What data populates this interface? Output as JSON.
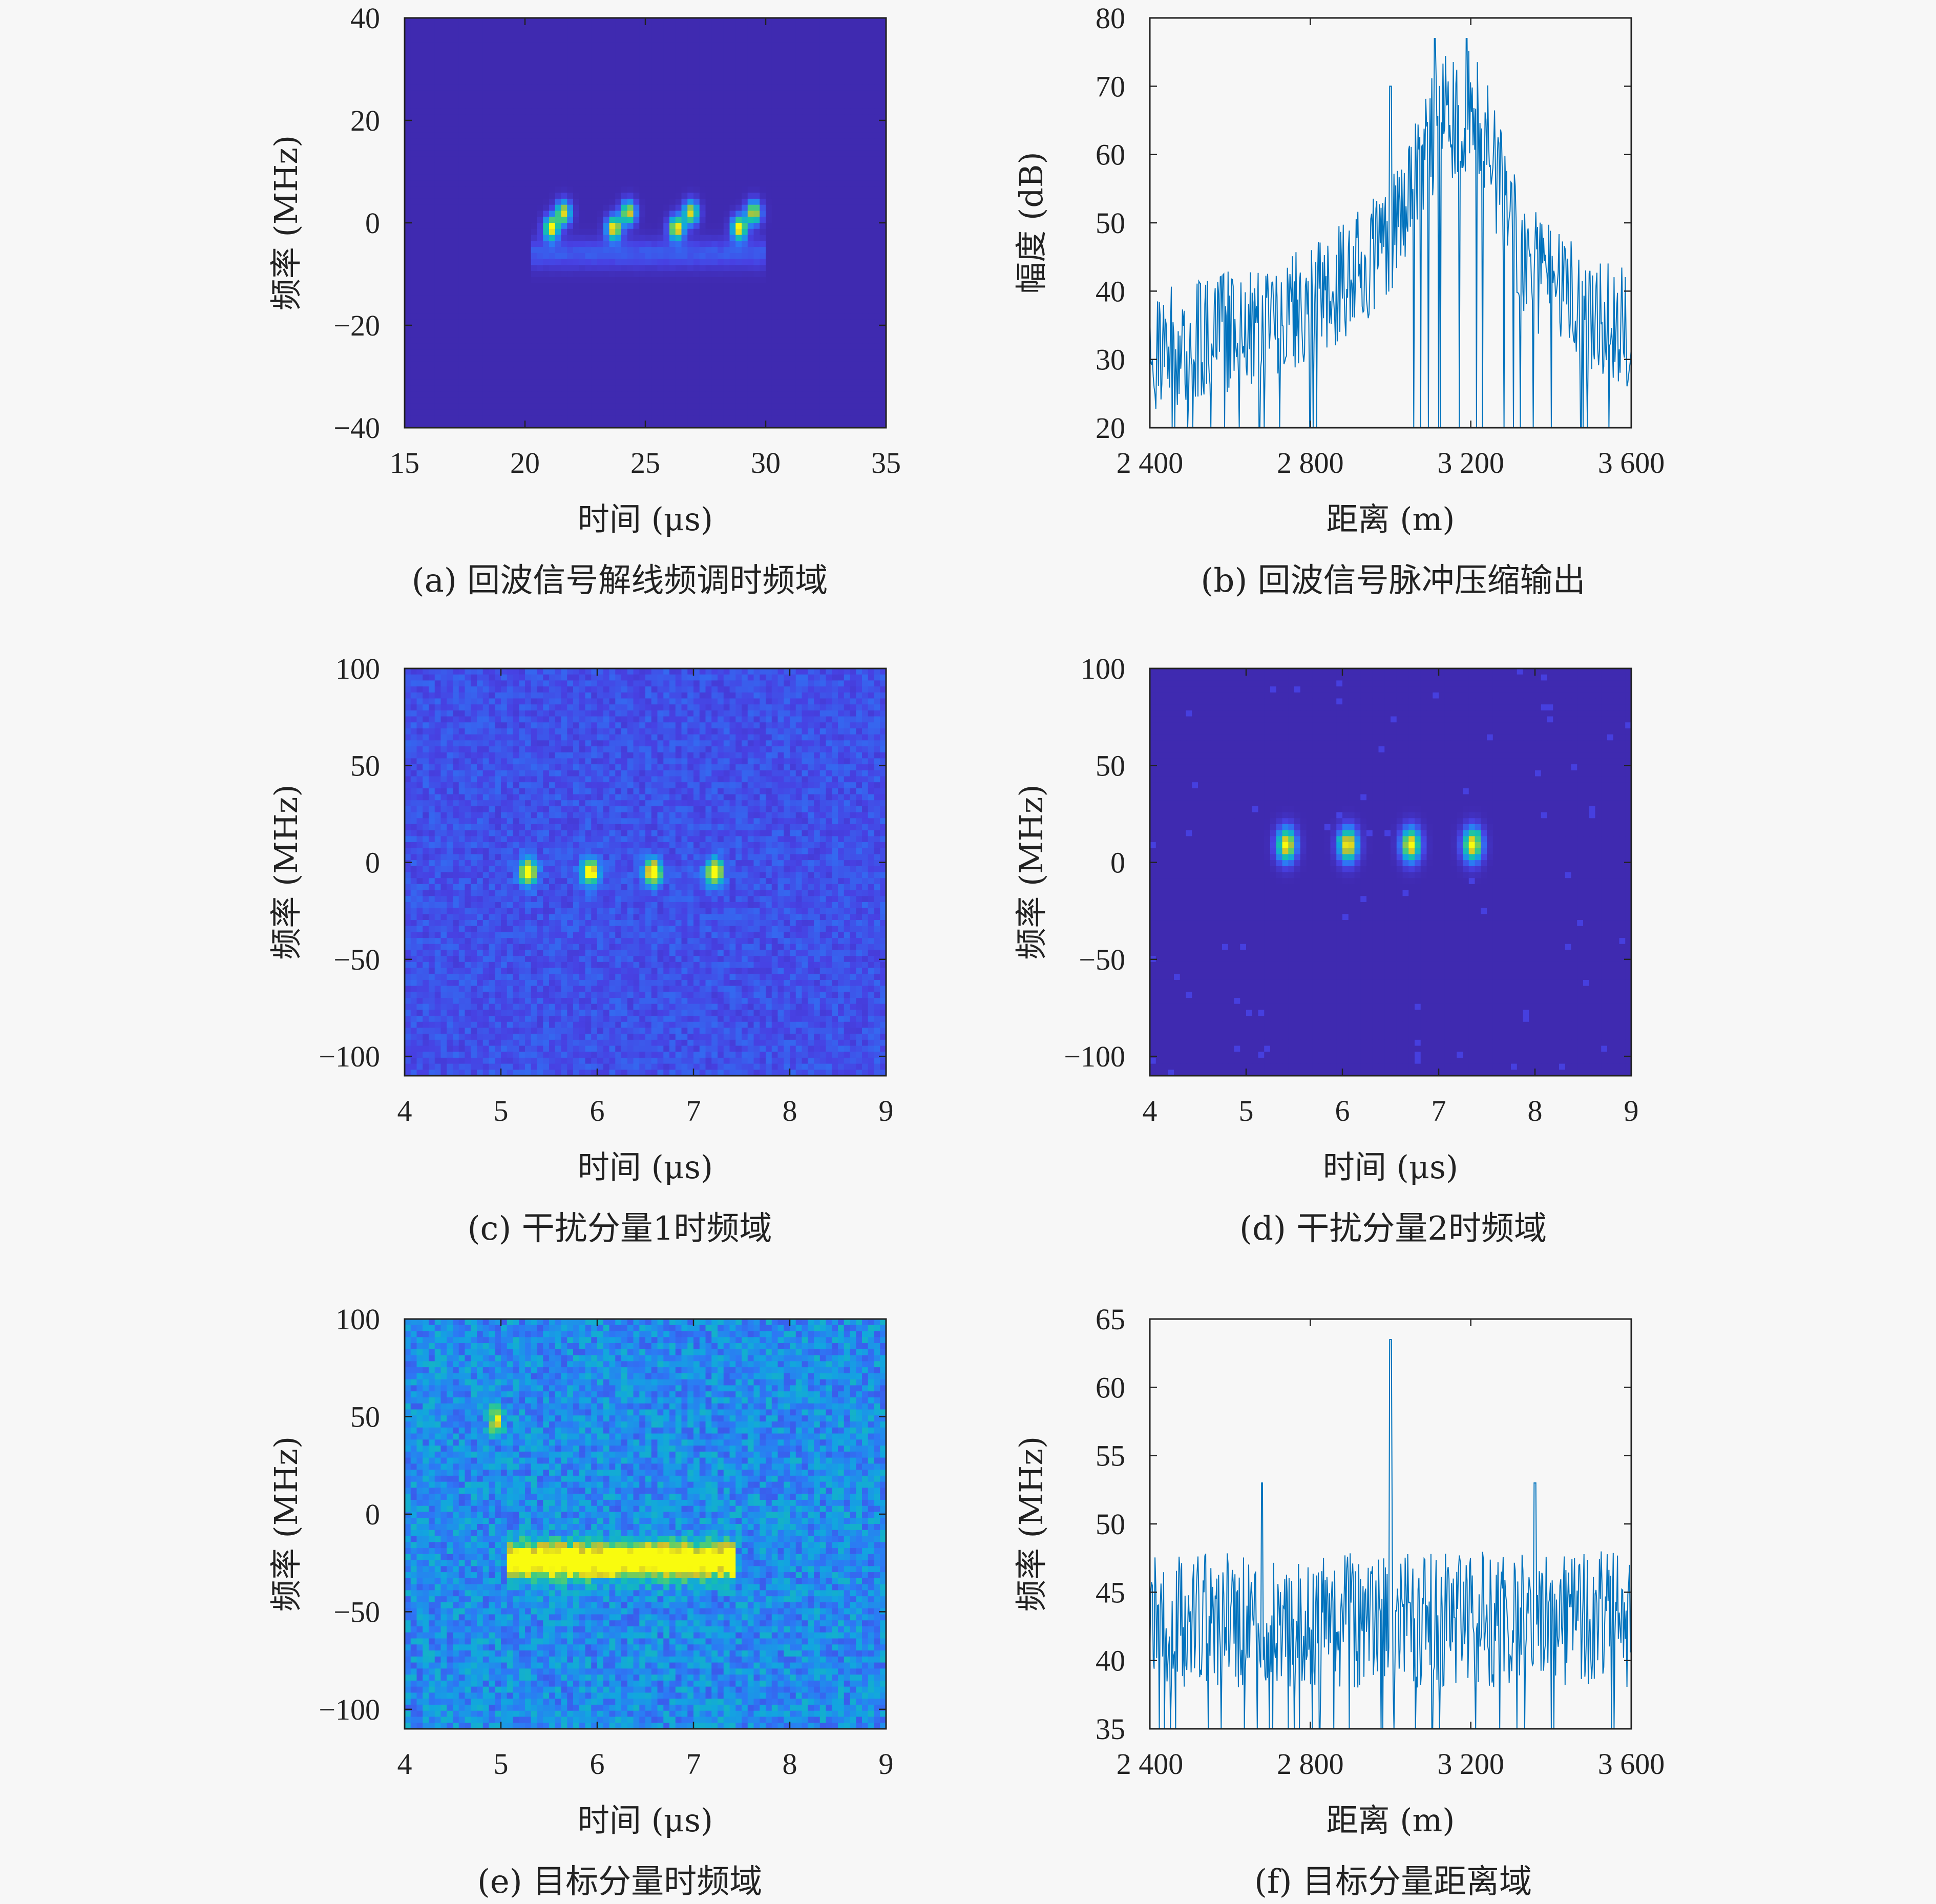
{
  "colors": {
    "background": "#f7f7f7",
    "axis": "#222222",
    "line": "#0072bd",
    "heatmap_low": "#3e26a8",
    "heatmap_mid": "#12bee6",
    "heatmap_high": "#f9fb0e"
  },
  "chart_data": [
    {
      "id": "a",
      "type": "heatmap",
      "caption": "(a) 回波信号解线频调时频域",
      "xlabel": "时间 (μs)",
      "ylabel": "频率 (MHz)",
      "xlim": [
        15,
        35
      ],
      "ylim": [
        -40,
        40
      ],
      "xticks": [
        15,
        20,
        25,
        30,
        35
      ],
      "yticks": [
        -40,
        -20,
        0,
        20,
        40
      ],
      "xtick_labels": [
        "15",
        "20",
        "25",
        "30",
        "35"
      ],
      "ytick_labels": [
        "−40",
        "−20",
        "0",
        "20",
        "40"
      ],
      "background_level": 0.02,
      "hotspots": [
        {
          "x": 21.1,
          "y": -1,
          "sx": 0.22,
          "sy": 1.6,
          "a": 1.0
        },
        {
          "x": 21.6,
          "y": 2,
          "sx": 0.22,
          "sy": 1.6,
          "a": 0.9
        },
        {
          "x": 23.7,
          "y": -1,
          "sx": 0.22,
          "sy": 1.6,
          "a": 1.0
        },
        {
          "x": 24.3,
          "y": 2,
          "sx": 0.22,
          "sy": 1.6,
          "a": 0.9
        },
        {
          "x": 26.3,
          "y": -1,
          "sx": 0.22,
          "sy": 1.6,
          "a": 1.0
        },
        {
          "x": 26.9,
          "y": 2,
          "sx": 0.22,
          "sy": 1.6,
          "a": 0.9
        },
        {
          "x": 28.9,
          "y": -1,
          "sx": 0.22,
          "sy": 1.6,
          "a": 1.0
        },
        {
          "x": 29.5,
          "y": 2,
          "sx": 0.22,
          "sy": 1.6,
          "a": 0.9
        }
      ],
      "bands": [
        {
          "x0": 20.3,
          "x1": 30.0,
          "y": -6,
          "h": 2,
          "a": 0.22
        }
      ]
    },
    {
      "id": "b",
      "type": "line",
      "caption": "(b) 回波信号脉冲压缩输出",
      "xlabel": "距离 (m)",
      "ylabel": "幅度 (dB)",
      "xlim": [
        2400,
        3600
      ],
      "ylim": [
        20,
        80
      ],
      "xticks": [
        2400,
        2800,
        3200,
        3600
      ],
      "yticks": [
        20,
        30,
        40,
        50,
        60,
        70,
        80
      ],
      "xtick_labels": [
        "2 400",
        "2 800",
        "3 200",
        "3 600"
      ],
      "ytick_labels": [
        "20",
        "30",
        "40",
        "50",
        "60",
        "70",
        "80"
      ],
      "envelope": [
        [
          2400,
          31
        ],
        [
          2600,
          34
        ],
        [
          2800,
          38
        ],
        [
          2980,
          46
        ],
        [
          3080,
          58
        ],
        [
          3130,
          68
        ],
        [
          3170,
          64
        ],
        [
          3210,
          68
        ],
        [
          3260,
          58
        ],
        [
          3340,
          44
        ],
        [
          3460,
          38
        ],
        [
          3600,
          34
        ]
      ],
      "spikes": [
        [
          3000,
          70
        ],
        [
          3110,
          77
        ],
        [
          3190,
          77
        ]
      ],
      "noise_amp": 9,
      "num_points": 560
    },
    {
      "id": "c",
      "type": "heatmap",
      "caption": "(c) 干扰分量1时频域",
      "xlabel": "时间 (μs)",
      "ylabel": "频率 (MHz)",
      "xlim": [
        4,
        9
      ],
      "ylim": [
        -110,
        100
      ],
      "xticks": [
        4,
        5,
        6,
        7,
        8,
        9
      ],
      "yticks": [
        -100,
        -50,
        0,
        50,
        100
      ],
      "xtick_labels": [
        "4",
        "5",
        "6",
        "7",
        "8",
        "9"
      ],
      "ytick_labels": [
        "−100",
        "−50",
        "0",
        "50",
        "100"
      ],
      "background_level": 0.12,
      "noise_level": 0.14,
      "hotspots": [
        {
          "x": 5.28,
          "y": -5,
          "sx": 0.06,
          "sy": 4.5,
          "a": 1.0
        },
        {
          "x": 5.93,
          "y": -5,
          "sx": 0.06,
          "sy": 4.5,
          "a": 1.0
        },
        {
          "x": 6.58,
          "y": -5,
          "sx": 0.06,
          "sy": 4.5,
          "a": 1.0
        },
        {
          "x": 7.22,
          "y": -5,
          "sx": 0.06,
          "sy": 4.5,
          "a": 1.0
        }
      ],
      "bands": []
    },
    {
      "id": "d",
      "type": "heatmap",
      "caption": "(d) 干扰分量2时频域",
      "xlabel": "时间 (μs)",
      "ylabel": "频率 (MHz)",
      "xlim": [
        4,
        9
      ],
      "ylim": [
        -110,
        100
      ],
      "xticks": [
        4,
        5,
        6,
        7,
        8,
        9
      ],
      "yticks": [
        -100,
        -50,
        0,
        50,
        100
      ],
      "xtick_labels": [
        "4",
        "5",
        "6",
        "7",
        "8",
        "9"
      ],
      "ytick_labels": [
        "−100",
        "−50",
        "0",
        "50",
        "100"
      ],
      "background_level": 0.02,
      "noise_level": 0.0,
      "sparse_dots": 0.012,
      "hotspots": [
        {
          "x": 5.42,
          "y": 9,
          "sx": 0.07,
          "sy": 6,
          "a": 1.0
        },
        {
          "x": 6.06,
          "y": 9,
          "sx": 0.07,
          "sy": 6,
          "a": 1.0
        },
        {
          "x": 6.71,
          "y": 9,
          "sx": 0.07,
          "sy": 6,
          "a": 1.0
        },
        {
          "x": 7.35,
          "y": 9,
          "sx": 0.07,
          "sy": 6,
          "a": 1.0
        }
      ],
      "bands": []
    },
    {
      "id": "e",
      "type": "heatmap",
      "caption": "(e) 目标分量时频域",
      "xlabel": "时间 (μs)",
      "ylabel": "频率 (MHz)",
      "xlim": [
        4,
        9
      ],
      "ylim": [
        -110,
        100
      ],
      "xticks": [
        4,
        5,
        6,
        7,
        8,
        9
      ],
      "yticks": [
        -100,
        -50,
        0,
        50,
        100
      ],
      "xtick_labels": [
        "4",
        "5",
        "6",
        "7",
        "8",
        "9"
      ],
      "ytick_labels": [
        "−100",
        "−50",
        "0",
        "50",
        "100"
      ],
      "background_level": 0.22,
      "noise_level": 0.3,
      "hotspots": [
        {
          "x": 4.95,
          "y": 48,
          "sx": 0.05,
          "sy": 5,
          "a": 0.55
        }
      ],
      "bands": [
        {
          "x0": 5.05,
          "x1": 7.45,
          "y": -24,
          "h": 6,
          "a": 1.0
        }
      ]
    },
    {
      "id": "f",
      "type": "line",
      "caption": "(f) 目标分量距离域",
      "xlabel": "距离 (m)",
      "ylabel": "频率 (MHz)",
      "xlim": [
        2400,
        3600
      ],
      "ylim": [
        35,
        65
      ],
      "xticks": [
        2400,
        2800,
        3200,
        3600
      ],
      "yticks": [
        35,
        40,
        45,
        50,
        55,
        60,
        65
      ],
      "xtick_labels": [
        "2 400",
        "2 800",
        "3 200",
        "3 600"
      ],
      "ytick_labels": [
        "35",
        "40",
        "45",
        "50",
        "55",
        "60",
        "65"
      ],
      "envelope": [
        [
          2400,
          43
        ],
        [
          3600,
          43
        ]
      ],
      "spikes": [
        [
          3000,
          63.5
        ],
        [
          2680,
          53
        ],
        [
          3360,
          53
        ]
      ],
      "noise_amp": 5,
      "num_points": 560
    }
  ]
}
